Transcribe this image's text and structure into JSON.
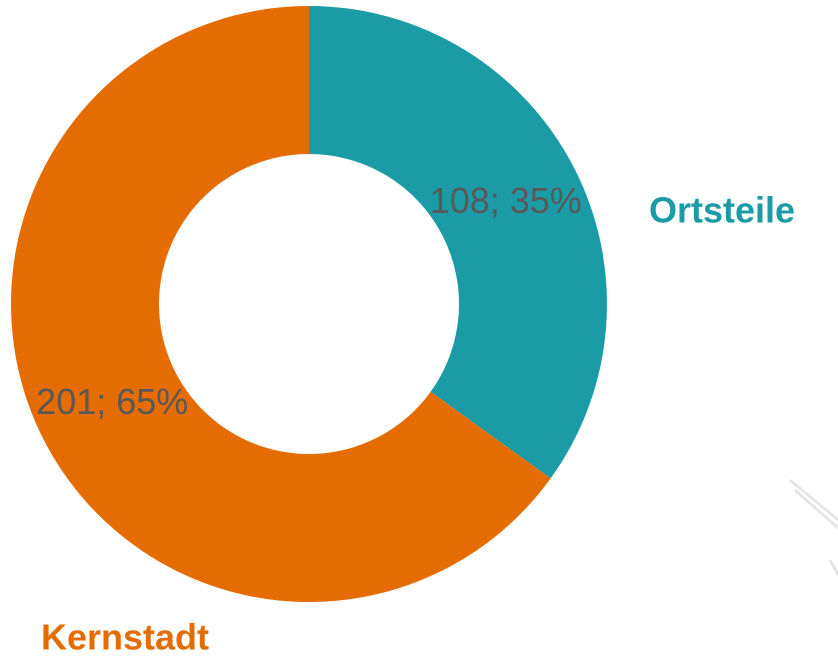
{
  "chart_data": {
    "type": "donut",
    "categories": [
      "Ortsteile",
      "Kernstadt"
    ],
    "values": [
      108,
      201
    ],
    "value_labels": [
      "108; 35%",
      "201; 65%"
    ],
    "colors": [
      "#1a9ba6",
      "#e46c00"
    ]
  }
}
